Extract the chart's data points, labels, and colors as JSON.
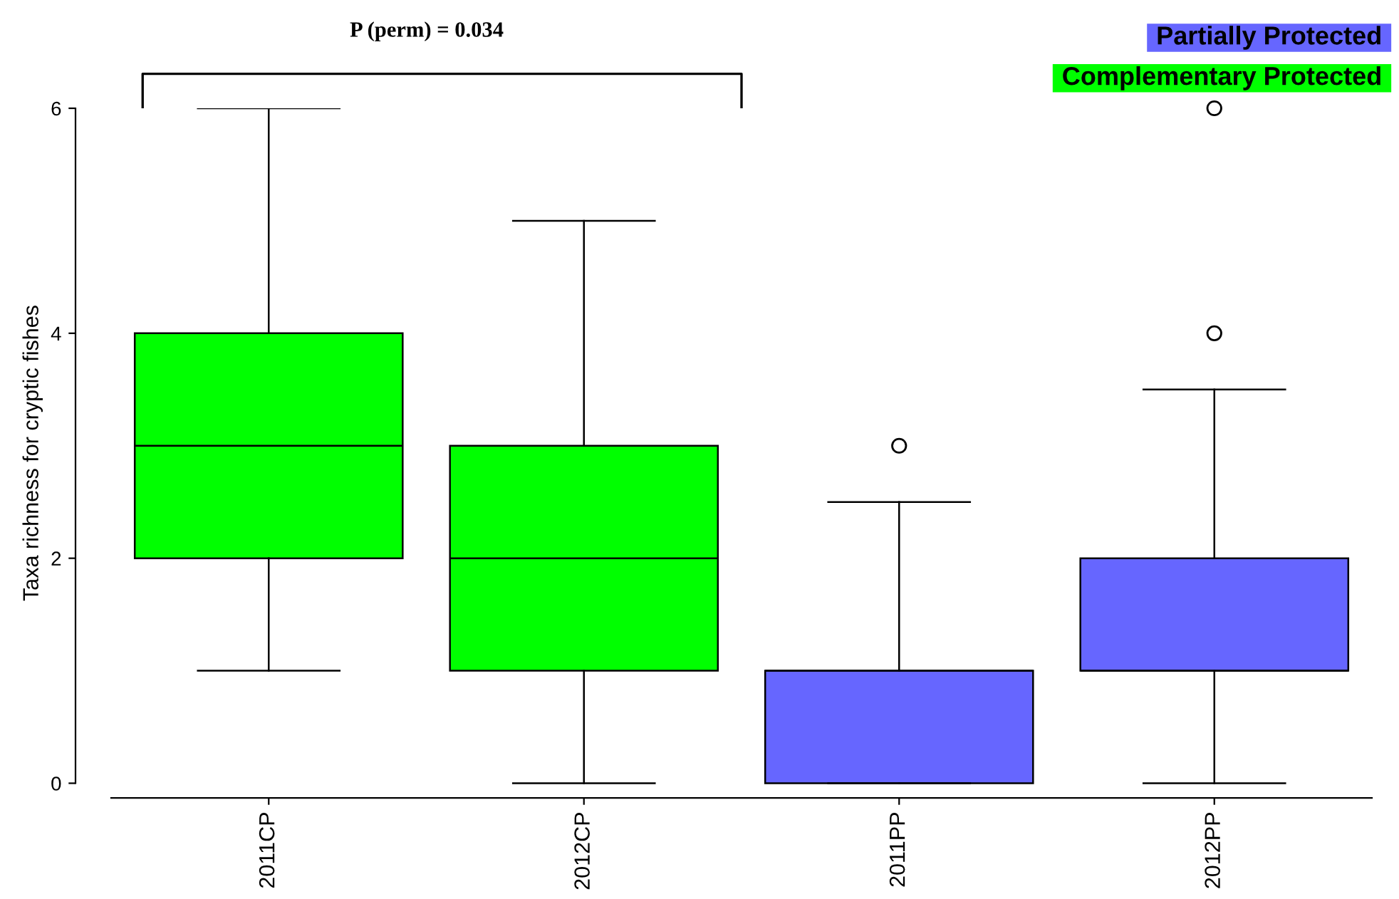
{
  "chart_data": {
    "type": "box",
    "ylabel": "Taxa richness for cryptic fishes",
    "categories": [
      "2011CP",
      "2012CP",
      "2011PP",
      "2012PP"
    ],
    "series": [
      {
        "name": "Partially Protected",
        "color": "#6666ff",
        "boxes": [
          null,
          null,
          {
            "low": 0,
            "q1": 0,
            "median": 1,
            "q3": 1,
            "high": 2.5,
            "outliers": [
              3
            ]
          },
          {
            "low": 0,
            "q1": 1,
            "median": 1,
            "q3": 2,
            "high": 3.5,
            "outliers": [
              4,
              6
            ]
          }
        ]
      },
      {
        "name": "Complementary Protected",
        "color": "#00ff00",
        "boxes": [
          {
            "low": 1,
            "q1": 2,
            "median": 3,
            "q3": 4,
            "high": 6
          },
          {
            "low": 0,
            "q1": 1,
            "median": 2,
            "q3": 3,
            "high": 5
          },
          null,
          null
        ]
      }
    ],
    "ylim": [
      -0.13,
      6
    ],
    "yticks": [
      0,
      2,
      4,
      6
    ],
    "annotations": [
      "P (perm) = 0.034"
    ],
    "grid": false,
    "legend": "top right"
  }
}
